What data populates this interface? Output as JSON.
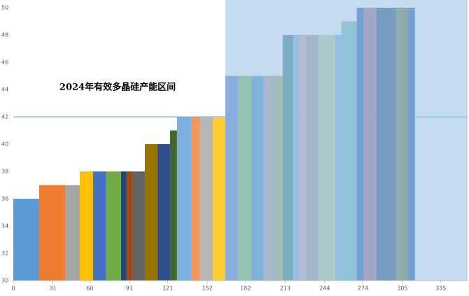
{
  "chart_data": {
    "type": "histogram",
    "title": "2024年有效多晶硅产能区间",
    "bins": [
      0,
      20.3,
      40.6,
      52.1,
      62.5,
      72.4,
      84.4,
      88.8,
      93.2,
      103.1,
      112.9,
      122.8,
      128.3,
      139.8,
      146.4,
      156.3,
      166.1,
      176.0,
      186.4,
      196.3,
      201.2,
      205.6,
      211.1,
      219.3,
      224.2,
      229.2,
      239.0,
      252.2,
      257.1,
      269.2,
      274.7,
      284.5,
      299.9,
      309.2,
      314.7
    ],
    "values": [
      36,
      37,
      37,
      38,
      38,
      38,
      38,
      38,
      38,
      40,
      40,
      41,
      42,
      42,
      42,
      42,
      45,
      45,
      45,
      45,
      45,
      45,
      48,
      48,
      48,
      48,
      48,
      48,
      49,
      50,
      50,
      50,
      50,
      50
    ],
    "colors": [
      "#5b9bd5",
      "#ed7d31",
      "#a5a5a5",
      "#ffc000",
      "#4472c4",
      "#70ad47",
      "#264478",
      "#9e480e",
      "#636363",
      "#997300",
      "#2e4d8a",
      "#43682b",
      "#7cafdd",
      "#f1975a",
      "#b7b7b7",
      "#ffcd33",
      "#698ed0",
      "#8cc168",
      "#5b9bd5",
      "#c9a0a0",
      "#a5a5a5",
      "#b5b56a",
      "#4b8f8a",
      "#8fb5e3",
      "#d8b0b0",
      "#a5a5a5",
      "#c9d2a0",
      "#8fb5e3",
      "#7fc4c0",
      "#2e6fb5",
      "#b07a9a",
      "#3e668a",
      "#7a8a50",
      "#2e6fb5"
    ],
    "xlim": [
      0,
      356
    ],
    "xticks": [
      0,
      31,
      60,
      91,
      121,
      152,
      182,
      213,
      244,
      274,
      305,
      335
    ],
    "ylim": [
      30,
      50
    ],
    "yticks": [
      30,
      32,
      34,
      36,
      38,
      40,
      42,
      44,
      46,
      48,
      50
    ],
    "reference_line": 42,
    "reference_color": "#5b9bd5",
    "highlight_x": [
      166.1,
      356
    ],
    "highlight_color": "#9dc3e6"
  }
}
